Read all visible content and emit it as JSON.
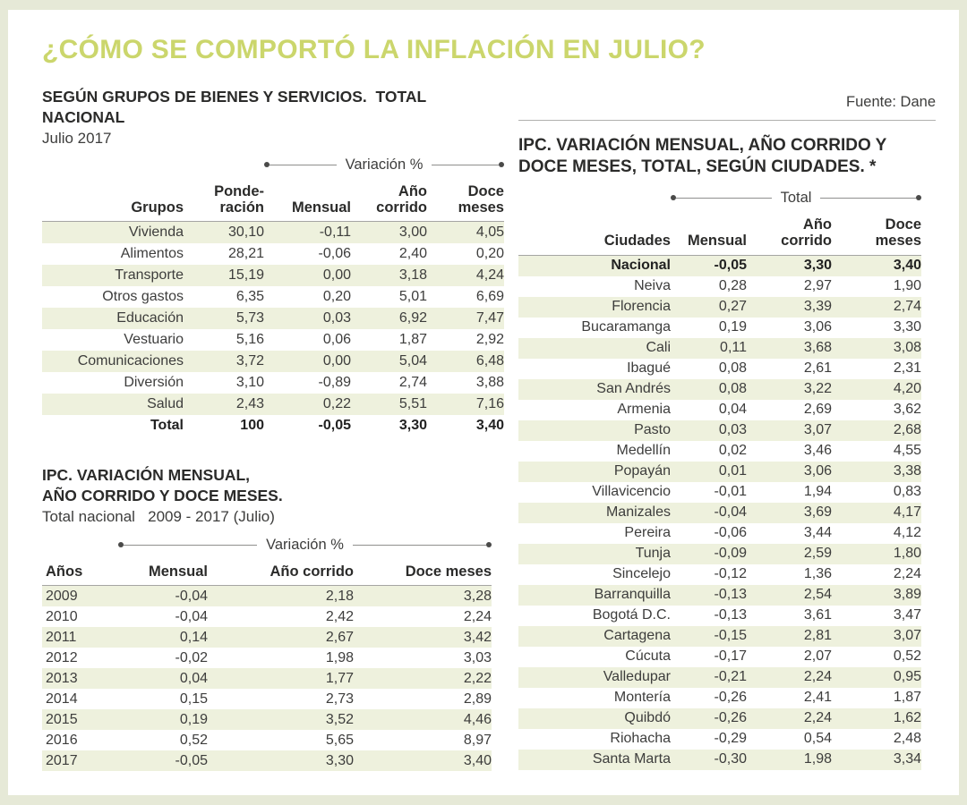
{
  "page": {
    "title": "¿CÓMO SE COMPORTÓ LA INFLACIÓN EN JULIO?",
    "source_label": "Fuente: Dane"
  },
  "colors": {
    "title_text": "#cbd66c",
    "row_stripe": "#eef1dd",
    "frame": "#e6e9d7",
    "body_text": "#3d3d3c"
  },
  "chart_data": [
    {
      "id": "grupos",
      "type": "table",
      "title": "SEGÚN GRUPOS DE BIENES Y SERVICIOS.  TOTAL NACIONAL",
      "subtitle": "Julio 2017",
      "span_header": "Variación %",
      "columns": [
        "Grupos",
        "Ponde-\nración",
        "Mensual",
        "Año\ncorrido",
        "Doce\nmeses"
      ],
      "rows": [
        [
          "Vivienda",
          "30,10",
          "-0,11",
          "3,00",
          "4,05"
        ],
        [
          "Alimentos",
          "28,21",
          "-0,06",
          "2,40",
          "0,20"
        ],
        [
          "Transporte",
          "15,19",
          "0,00",
          "3,18",
          "4,24"
        ],
        [
          "Otros gastos",
          "6,35",
          "0,20",
          "5,01",
          "6,69"
        ],
        [
          "Educación",
          "5,73",
          "0,03",
          "6,92",
          "7,47"
        ],
        [
          "Vestuario",
          "5,16",
          "0,06",
          "1,87",
          "2,92"
        ],
        [
          "Comunicaciones",
          "3,72",
          "0,00",
          "5,04",
          "6,48"
        ],
        [
          "Diversión",
          "3,10",
          "-0,89",
          "2,74",
          "3,88"
        ],
        [
          "Salud",
          "2,43",
          "0,22",
          "5,51",
          "7,16"
        ],
        [
          "Total",
          "100",
          "-0,05",
          "3,30",
          "3,40"
        ]
      ],
      "bold_rows": [
        9
      ]
    },
    {
      "id": "ipc-anual",
      "type": "table",
      "title": "IPC. VARIACIÓN MENSUAL,\nAÑO CORRIDO Y DOCE MESES.",
      "subtitle": "Total nacional   2009 - 2017 (Julio)",
      "span_header": "Variación %",
      "columns": [
        "Años",
        "Mensual",
        "Año corrido",
        "Doce meses"
      ],
      "rows": [
        [
          "2009",
          "-0,04",
          "2,18",
          "3,28"
        ],
        [
          "2010",
          "-0,04",
          "2,42",
          "2,24"
        ],
        [
          "2011",
          "0,14",
          "2,67",
          "3,42"
        ],
        [
          "2012",
          "-0,02",
          "1,98",
          "3,03"
        ],
        [
          "2013",
          "0,04",
          "1,77",
          "2,22"
        ],
        [
          "2014",
          "0,15",
          "2,73",
          "2,89"
        ],
        [
          "2015",
          "0,19",
          "3,52",
          "4,46"
        ],
        [
          "2016",
          "0,52",
          "5,65",
          "8,97"
        ],
        [
          "2017",
          "-0,05",
          "3,30",
          "3,40"
        ]
      ],
      "bold_rows": []
    },
    {
      "id": "ipc-ciudades",
      "type": "table",
      "title": "IPC. VARIACIÓN MENSUAL, AÑO CORRIDO Y DOCE MESES, TOTAL, SEGÚN CIUDADES. *",
      "subtitle": "",
      "span_header": "Total",
      "columns": [
        "Ciudades",
        "Mensual",
        "Año\ncorrido",
        "Doce\nmeses"
      ],
      "rows": [
        [
          "Nacional",
          "-0,05",
          "3,30",
          "3,40"
        ],
        [
          "Neiva",
          "0,28",
          "2,97",
          "1,90"
        ],
        [
          "Florencia",
          "0,27",
          "3,39",
          "2,74"
        ],
        [
          "Bucaramanga",
          "0,19",
          "3,06",
          "3,30"
        ],
        [
          "Cali",
          "0,11",
          "3,68",
          "3,08"
        ],
        [
          "Ibagué",
          "0,08",
          "2,61",
          "2,31"
        ],
        [
          "San Andrés",
          "0,08",
          "3,22",
          "4,20"
        ],
        [
          "Armenia",
          "0,04",
          "2,69",
          "3,62"
        ],
        [
          "Pasto",
          "0,03",
          "3,07",
          "2,68"
        ],
        [
          "Medellín",
          "0,02",
          "3,46",
          "4,55"
        ],
        [
          "Popayán",
          "0,01",
          "3,06",
          "3,38"
        ],
        [
          "Villavicencio",
          "-0,01",
          "1,94",
          "0,83"
        ],
        [
          "Manizales",
          "-0,04",
          "3,69",
          "4,17"
        ],
        [
          "Pereira",
          "-0,06",
          "3,44",
          "4,12"
        ],
        [
          "Tunja",
          "-0,09",
          "2,59",
          "1,80"
        ],
        [
          "Sincelejo",
          "-0,12",
          "1,36",
          "2,24"
        ],
        [
          "Barranquilla",
          "-0,13",
          "2,54",
          "3,89"
        ],
        [
          "Bogotá D.C.",
          "-0,13",
          "3,61",
          "3,47"
        ],
        [
          "Cartagena",
          "-0,15",
          "2,81",
          "3,07"
        ],
        [
          "Cúcuta",
          "-0,17",
          "2,07",
          "0,52"
        ],
        [
          "Valledupar",
          "-0,21",
          "2,24",
          "0,95"
        ],
        [
          "Montería",
          "-0,26",
          "2,41",
          "1,87"
        ],
        [
          "Quibdó",
          "-0,26",
          "2,24",
          "1,62"
        ],
        [
          "Riohacha",
          "-0,29",
          "0,54",
          "2,48"
        ],
        [
          "Santa Marta",
          "-0,30",
          "1,98",
          "3,34"
        ]
      ],
      "bold_rows": [
        0
      ]
    }
  ]
}
